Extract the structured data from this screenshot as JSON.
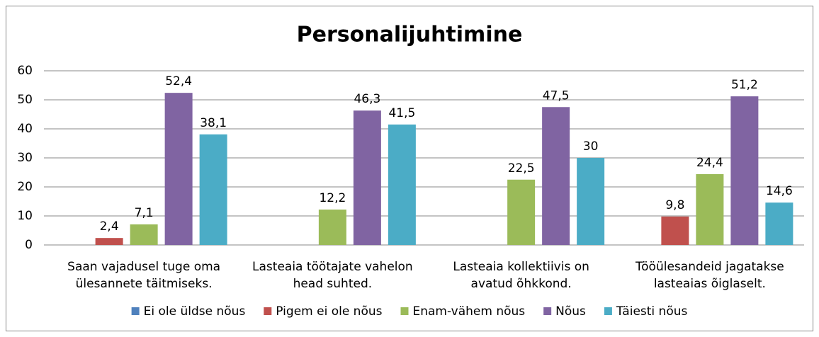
{
  "chart_data": {
    "type": "bar",
    "title": "Personalijuhtimine",
    "categories": [
      "Saan vajadusel tuge oma ülesannete täitmiseks.",
      "Lasteaia töötajate vahelon head suhted.",
      "Lasteaia kollektiivis on avatud õhkkond.",
      "Tööülesandeid jagatakse lasteaias õiglaselt."
    ],
    "series": [
      {
        "name": "Ei ole üldse nõus",
        "color": "#4f81bd",
        "values": [
          null,
          null,
          null,
          null
        ]
      },
      {
        "name": "Pigem ei ole nõus",
        "color": "#c0504d",
        "values": [
          2.4,
          null,
          null,
          9.8
        ],
        "value_labels": [
          "2,4",
          null,
          null,
          "9,8"
        ]
      },
      {
        "name": "Enam-vähem nõus",
        "color": "#9bbb59",
        "values": [
          7.1,
          12.2,
          22.5,
          24.4
        ],
        "value_labels": [
          "7,1",
          "12,2",
          "22,5",
          "24,4"
        ]
      },
      {
        "name": "Nõus",
        "color": "#8064a2",
        "values": [
          52.4,
          46.3,
          47.5,
          51.2
        ],
        "value_labels": [
          "52,4",
          "46,3",
          "47,5",
          "51,2"
        ]
      },
      {
        "name": "Täiesti nõus",
        "color": "#4bacc6",
        "values": [
          38.1,
          41.5,
          30,
          14.6
        ],
        "value_labels": [
          "38,1",
          "41,5",
          "30",
          "14,6"
        ]
      }
    ],
    "ylim": [
      0,
      60
    ],
    "yticks": [
      0,
      10,
      20,
      30,
      40,
      50,
      60
    ],
    "grid": true,
    "legend": "bottom"
  }
}
